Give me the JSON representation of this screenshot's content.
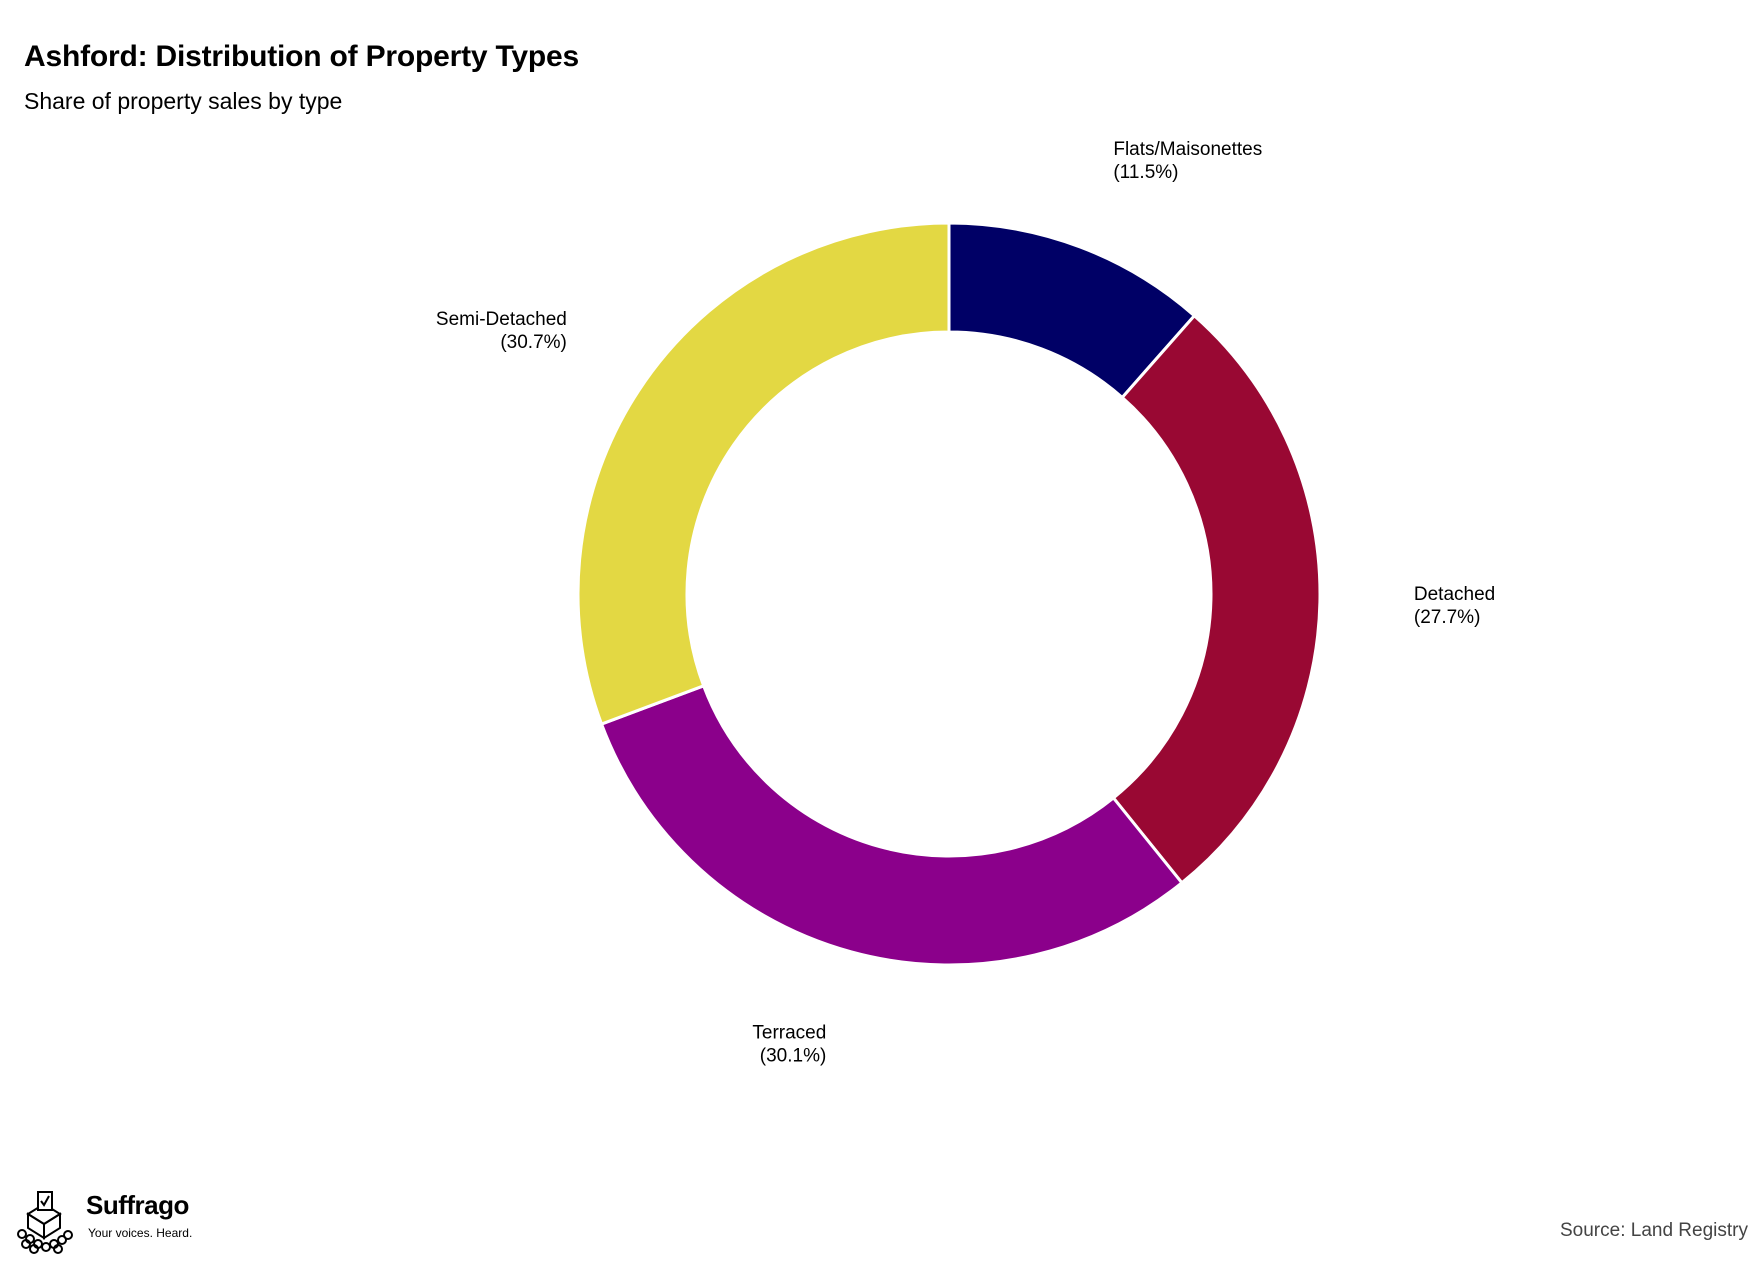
{
  "header": {
    "title": "Ashford: Distribution of Property Types",
    "subtitle": "Share of property sales by type"
  },
  "chart_data": {
    "type": "pie",
    "variant": "donut",
    "title": "Ashford: Distribution of Property Types",
    "subtitle": "Share of property sales by type",
    "start_angle": "12 o'clock, clockwise",
    "slices": [
      {
        "label": "Flats/Maisonettes",
        "value_label": "(11.5%)",
        "value": 11.5,
        "color": "#000066"
      },
      {
        "label": "Detached",
        "value_label": "(27.7%)",
        "value": 27.7,
        "color": "#990833"
      },
      {
        "label": "Terraced",
        "value_label": "(30.1%)",
        "value": 30.1,
        "color": "#8B008B"
      },
      {
        "label": "Semi-Detached",
        "value_label": "(30.7%)",
        "value": 30.7,
        "color": "#E3D843"
      }
    ]
  },
  "branding": {
    "logo_name": "Suffrago",
    "logo_tagline": "Your voices. Heard.",
    "logo_icon": "ballot-box-crowd-icon"
  },
  "footer": {
    "source": "Source: Land Registry"
  }
}
